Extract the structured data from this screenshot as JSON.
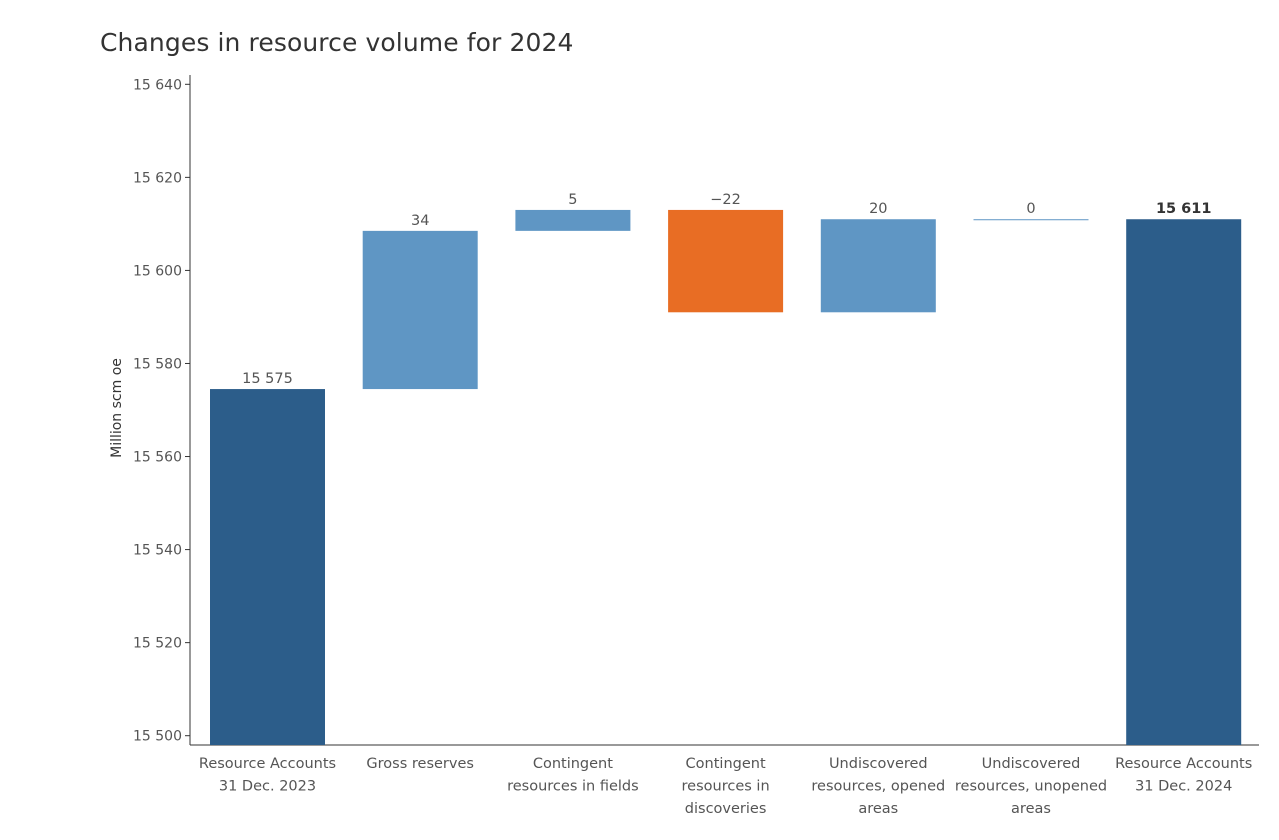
{
  "chart_data": {
    "type": "bar",
    "subtype": "waterfall",
    "title": "Changes in resource volume for 2024",
    "ylabel": "Million scm oe",
    "xlabel": "",
    "ylim": [
      15498,
      15642
    ],
    "yticks": [
      15500,
      15520,
      15540,
      15560,
      15580,
      15600,
      15620,
      15640
    ],
    "ytick_labels": [
      "15 500",
      "15 520",
      "15 540",
      "15 560",
      "15 580",
      "15 600",
      "15 620",
      "15 640"
    ],
    "grid": false,
    "categories": [
      [
        "Resource Accounts",
        "31 Dec. 2023"
      ],
      [
        "Gross reserves"
      ],
      [
        "Contingent",
        "resources in fields"
      ],
      [
        "Contingent",
        "resources in",
        "discoveries"
      ],
      [
        "Undiscovered",
        "resources, opened",
        "areas"
      ],
      [
        "Undiscovered",
        "resources, unopened",
        "areas"
      ],
      [
        "Resource Accounts",
        "31 Dec. 2024"
      ]
    ],
    "bars": [
      {
        "kind": "total",
        "start": 0,
        "end": 15574.5,
        "label": "15 575"
      },
      {
        "kind": "increase",
        "start": 15574.5,
        "end": 15608.5,
        "label": "34"
      },
      {
        "kind": "increase",
        "start": 15608.5,
        "end": 15613,
        "label": "5"
      },
      {
        "kind": "decrease",
        "start": 15613,
        "end": 15591,
        "label": "−22"
      },
      {
        "kind": "increase",
        "start": 15591,
        "end": 15611,
        "label": "20"
      },
      {
        "kind": "increase",
        "start": 15611,
        "end": 15611,
        "label": "0"
      },
      {
        "kind": "total",
        "start": 0,
        "end": 15611,
        "label": "15 611"
      }
    ],
    "colors": {
      "total": "#2c5d8a",
      "increase": "#5f96c4",
      "decrease": "#e86d24",
      "axis": "#333333",
      "text": "#555555"
    }
  }
}
